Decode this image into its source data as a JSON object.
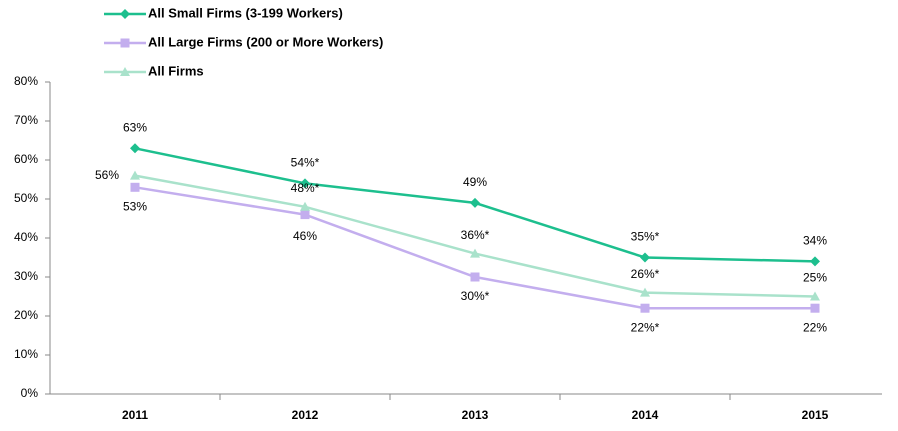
{
  "chart_data": {
    "type": "line",
    "categories": [
      "2011",
      "2012",
      "2013",
      "2014",
      "2015"
    ],
    "series": [
      {
        "name": "All Small Firms (3-199 Workers)",
        "color": "#1dbf8e",
        "marker": "diamond",
        "values": [
          63,
          54,
          49,
          35,
          34
        ],
        "value_labels": [
          "63%",
          "54%*",
          "49%",
          "35%*",
          "34%"
        ]
      },
      {
        "name": "All Large Firms (200 or More Workers)",
        "color": "#c3aeee",
        "marker": "square",
        "values": [
          53,
          46,
          30,
          22,
          22
        ],
        "value_labels": [
          "53%",
          "46%",
          "30%*",
          "22%*",
          "22%"
        ]
      },
      {
        "name": "All Firms",
        "color": "#a9e2cb",
        "marker": "triangle",
        "values": [
          56,
          48,
          36,
          26,
          25
        ],
        "value_labels": [
          "56%",
          "48%*",
          "36%*",
          "26%*",
          "25%"
        ]
      }
    ],
    "ylim": [
      0,
      80
    ],
    "yticks": [
      {
        "value": 0,
        "label": "0%"
      },
      {
        "value": 10,
        "label": "10%"
      },
      {
        "value": 20,
        "label": "20%"
      },
      {
        "value": 30,
        "label": "30%"
      },
      {
        "value": 40,
        "label": "40%"
      },
      {
        "value": 50,
        "label": "50%"
      },
      {
        "value": 60,
        "label": "60%"
      },
      {
        "value": 70,
        "label": "70%"
      },
      {
        "value": 80,
        "label": "80%"
      }
    ],
    "legend": "top-left"
  }
}
